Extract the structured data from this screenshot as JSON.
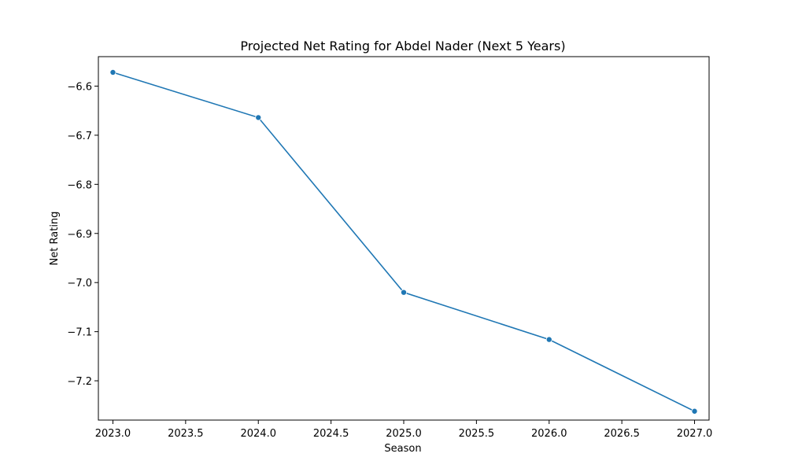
{
  "chart_data": {
    "type": "line",
    "title": "Projected Net Rating for Abdel Nader (Next 5 Years)",
    "xlabel": "Season",
    "ylabel": "Net Rating",
    "xlim": [
      2022.9,
      2027.1
    ],
    "ylim": [
      -7.28,
      -6.54
    ],
    "xticks": [
      2023.0,
      2023.5,
      2024.0,
      2024.5,
      2025.0,
      2025.5,
      2026.0,
      2026.5,
      2027.0
    ],
    "xtick_labels": [
      "2023.0",
      "2023.5",
      "2024.0",
      "2024.5",
      "2025.0",
      "2025.5",
      "2026.0",
      "2026.5",
      "2027.0"
    ],
    "yticks": [
      -6.6,
      -6.7,
      -6.8,
      -6.9,
      -7.0,
      -7.1,
      -7.2
    ],
    "ytick_labels": [
      "−6.6",
      "−6.7",
      "−6.8",
      "−6.9",
      "−7.0",
      "−7.1",
      "−7.2"
    ],
    "grid": false,
    "series": [
      {
        "color": "#1f77b4",
        "marker": "circle",
        "x": [
          2023,
          2024,
          2025,
          2026,
          2027
        ],
        "y": [
          -6.572,
          -6.664,
          -7.02,
          -7.116,
          -7.262
        ]
      }
    ]
  }
}
